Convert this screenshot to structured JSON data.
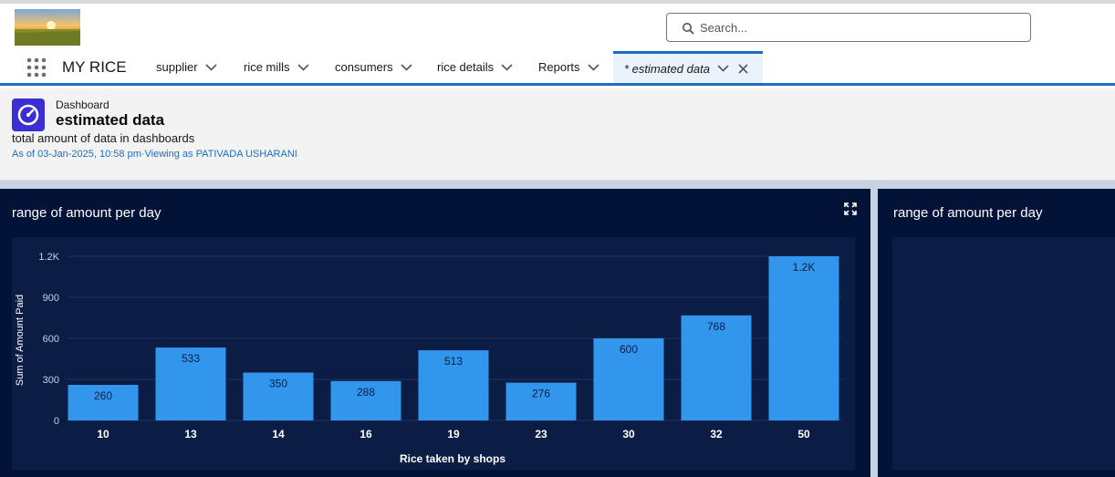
{
  "search": {
    "placeholder": "Search..."
  },
  "app": {
    "name": "MY RICE"
  },
  "nav": {
    "items": [
      {
        "label": "supplier"
      },
      {
        "label": "rice mills"
      },
      {
        "label": "consumers"
      },
      {
        "label": "rice details"
      },
      {
        "label": "Reports"
      }
    ],
    "active_tab": {
      "label": "* estimated data"
    }
  },
  "header": {
    "type_label": "Dashboard",
    "title": "estimated data",
    "description": "total amount of data in dashboards",
    "meta": "As of 03-Jan-2025, 10:58 pm·Viewing as PATIVADA USHARANI"
  },
  "panels": {
    "left_title": "range of amount per day",
    "right_title": "range of amount per day"
  },
  "icons": {
    "app_launcher": "grid-icon",
    "search": "search-icon",
    "dashboard": "gauge-icon",
    "expand": "expand-icon",
    "close": "close-icon",
    "chevron": "chevron-down-icon"
  },
  "colors": {
    "brand_blue": "#1b6ec2",
    "panel_bg": "#021337",
    "bar": "#3296ed",
    "dashboard_icon_bg": "#3b2ed3"
  },
  "chart_data": {
    "type": "bar",
    "categories": [
      "10",
      "13",
      "14",
      "16",
      "19",
      "23",
      "30",
      "32",
      "50"
    ],
    "values": [
      260,
      533,
      350,
      288,
      513,
      276,
      600,
      768,
      1200
    ],
    "data_labels": [
      "260",
      "533",
      "350",
      "288",
      "513",
      "276",
      "600",
      "768",
      "1.2K"
    ],
    "xlabel": "Rice taken by shops",
    "ylabel": "Sum of Amount Paid",
    "y_ticks": [
      "0",
      "300",
      "600",
      "900",
      "1.2K"
    ],
    "ylim": [
      0,
      1200
    ],
    "grid": true
  }
}
